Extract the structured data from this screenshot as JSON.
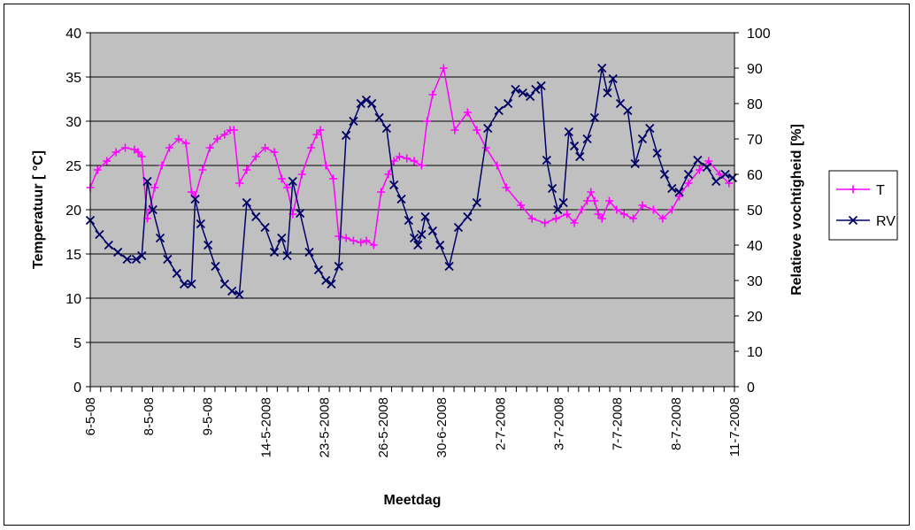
{
  "chart_data": {
    "type": "line",
    "xlabel": "Meetdag",
    "ylabel_left": "Temperatuur [ °C]",
    "ylabel_right": "Relatieve vochtigheid [%]",
    "ylim_left": [
      0,
      40
    ],
    "ylim_right": [
      0,
      100
    ],
    "yticks_left": [
      "0",
      "5",
      "10",
      "15",
      "20",
      "25",
      "30",
      "35",
      "40"
    ],
    "yticks_right": [
      "0",
      "10",
      "20",
      "30",
      "40",
      "50",
      "60",
      "70",
      "80",
      "90",
      "100"
    ],
    "x_tick_labels": [
      "6-5-08",
      "8-5-08",
      "9-5-08",
      "14-5-2008",
      "23-5-2008",
      "26-5-2008",
      "30-6-2008",
      "2-7-2008",
      "3-7-2008",
      "7-7-2008",
      "8-7-2008",
      "11-7-2008"
    ],
    "x_range": [
      0,
      700
    ],
    "plot_background": "#c0c0c0",
    "grid": "horizontal",
    "legend_position": "right",
    "series": [
      {
        "name": "T",
        "axis": "left",
        "color": "#ff00ff",
        "marker": "plus",
        "x": [
          0,
          8,
          18,
          28,
          38,
          48,
          52,
          56,
          62,
          70,
          78,
          86,
          96,
          104,
          110,
          114,
          122,
          130,
          138,
          146,
          152,
          156,
          162,
          170,
          180,
          190,
          200,
          208,
          214,
          220,
          230,
          240,
          246,
          250,
          256,
          264,
          270,
          278,
          286,
          294,
          300,
          308,
          316,
          324,
          330,
          336,
          344,
          352,
          360,
          366,
          372,
          384,
          396,
          410,
          420,
          430,
          442,
          452,
          468,
          480,
          494,
          506,
          518,
          526,
          534,
          540,
          544,
          548,
          552,
          556,
          564,
          572,
          580,
          590,
          600,
          612,
          622,
          632,
          640,
          650,
          662,
          672,
          684,
          694
        ],
        "values": [
          22.5,
          24.5,
          25.5,
          26.5,
          27.0,
          26.8,
          26.5,
          26.0,
          19.0,
          22.5,
          25.0,
          27.0,
          28.0,
          27.5,
          22.0,
          21.5,
          24.5,
          27.0,
          28.0,
          28.5,
          29.0,
          29.0,
          23.0,
          24.5,
          26.0,
          27.0,
          26.5,
          23.5,
          22.5,
          19.5,
          24.0,
          27.0,
          28.5,
          29.0,
          25.0,
          23.5,
          17.0,
          16.8,
          16.5,
          16.3,
          16.5,
          16.0,
          22.0,
          24.0,
          25.5,
          26.0,
          25.8,
          25.5,
          25.0,
          30.0,
          33.0,
          36.0,
          29.0,
          31.0,
          29.0,
          27.0,
          25.0,
          22.5,
          20.5,
          19.0,
          18.5,
          19.0,
          19.5,
          18.5,
          20.0,
          21.0,
          22.0,
          21.0,
          19.5,
          19.0,
          21.0,
          20.0,
          19.5,
          19.0,
          20.5,
          20.0,
          19.0,
          20.0,
          21.5,
          23.0,
          24.5,
          25.5,
          24.0,
          23.0
        ]
      },
      {
        "name": "RV",
        "axis": "right",
        "color": "#000066",
        "marker": "x",
        "x": [
          0,
          10,
          20,
          30,
          40,
          50,
          56,
          62,
          68,
          76,
          84,
          94,
          102,
          110,
          114,
          120,
          128,
          136,
          146,
          154,
          162,
          170,
          180,
          190,
          200,
          208,
          214,
          220,
          228,
          238,
          248,
          256,
          262,
          270,
          278,
          286,
          294,
          300,
          306,
          314,
          322,
          330,
          338,
          346,
          352,
          356,
          360,
          364,
          372,
          380,
          390,
          400,
          410,
          420,
          432,
          444,
          454,
          462,
          470,
          478,
          484,
          490,
          496,
          502,
          508,
          514,
          520,
          526,
          532,
          540,
          548,
          556,
          562,
          568,
          576,
          584,
          592,
          600,
          608,
          616,
          624,
          632,
          640,
          650,
          660,
          670,
          680,
          690,
          698
        ],
        "values": [
          47,
          43,
          40,
          38,
          36,
          36,
          37,
          58,
          50,
          42,
          36,
          32,
          29,
          29,
          53,
          46,
          40,
          34,
          29,
          27,
          26,
          52,
          48,
          45,
          38,
          42,
          37,
          58,
          49,
          38,
          33,
          30,
          29,
          34,
          71,
          75,
          80,
          81,
          80,
          76,
          73,
          57,
          53,
          47,
          42,
          40,
          43,
          48,
          44,
          40,
          34,
          45,
          48,
          52,
          73,
          78,
          80,
          84,
          83,
          82,
          84,
          85,
          64,
          56,
          50,
          52,
          72,
          68,
          65,
          70,
          76,
          90,
          83,
          87,
          80,
          78,
          63,
          70,
          73,
          66,
          60,
          56,
          55,
          60,
          64,
          62,
          58,
          60,
          59
        ]
      }
    ]
  }
}
